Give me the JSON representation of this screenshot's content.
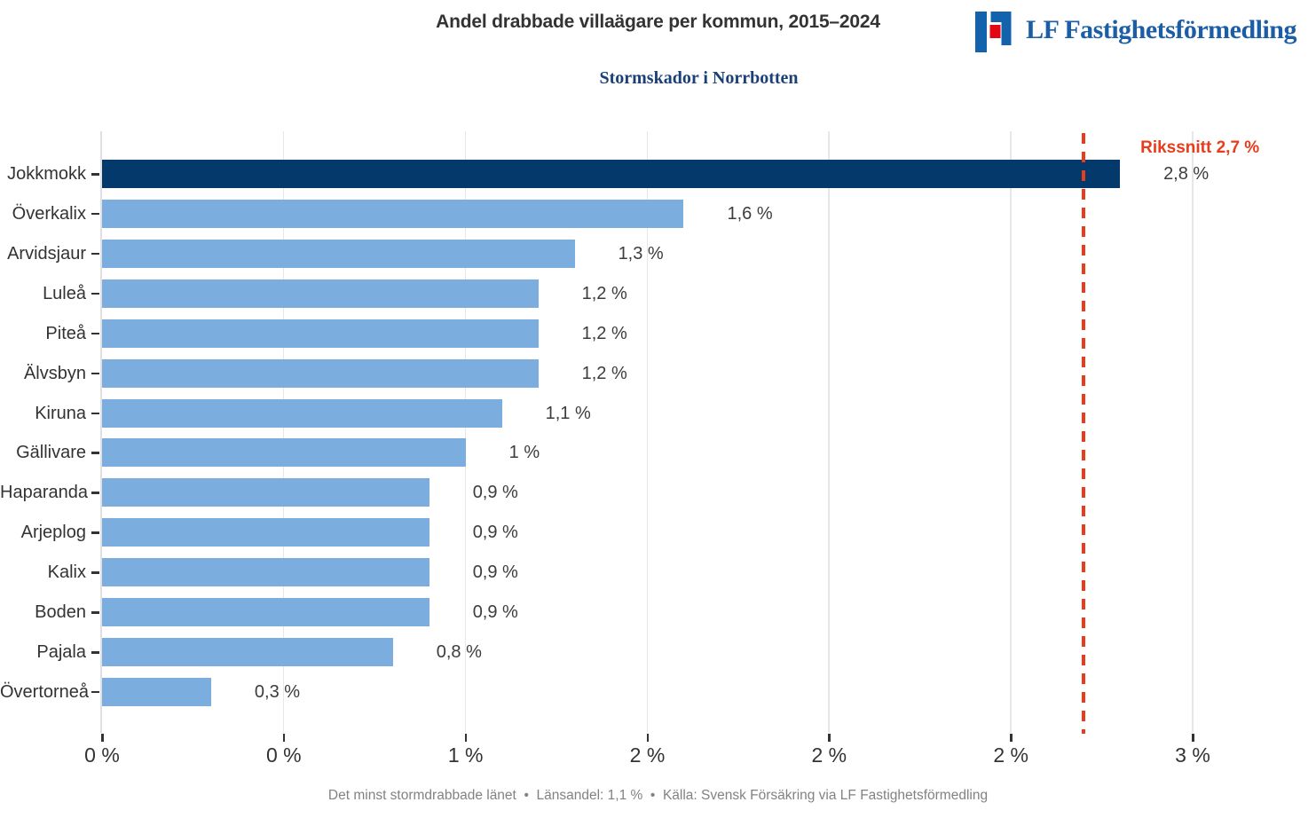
{
  "header": {
    "title": "Andel drabbade villaägare per kommun, 2015–2024",
    "logo": {
      "text": "LF Fastighetsförmedling",
      "brand_blue": "#1362ac",
      "brand_red": "#e30613",
      "text_blue": "#1b5ea6"
    }
  },
  "subtitle": "Stormskador i Norrbotten",
  "chart_data": {
    "type": "bar",
    "orientation": "horizontal",
    "title": "Andel drabbade villaägare per kommun, 2015–2024",
    "subtitle": "Stormskador i Norrbotten",
    "categories": [
      "Jokkmokk",
      "Överkalix",
      "Arvidsjaur",
      "Luleå",
      "Piteå",
      "Älvsbyn",
      "Kiruna",
      "Gällivare",
      "Haparanda",
      "Arjeplog",
      "Kalix",
      "Boden",
      "Pajala",
      "Övertorneå"
    ],
    "values": [
      2.8,
      1.6,
      1.3,
      1.2,
      1.2,
      1.2,
      1.1,
      1.0,
      0.9,
      0.9,
      0.9,
      0.9,
      0.8,
      0.3
    ],
    "value_labels": [
      "2,8 %",
      "1,6 %",
      "1,3 %",
      "1,2 %",
      "1,2 %",
      "1,2 %",
      "1,1 %",
      "1 %",
      "0,9 %",
      "0,9 %",
      "0,9 %",
      "0,9 %",
      "0,8 %",
      "0,3 %"
    ],
    "xlabel": "",
    "ylabel": "",
    "xlim": [
      0,
      3.28
    ],
    "x_ticks": [
      0,
      0.5,
      1,
      1.5,
      2,
      2.5,
      3
    ],
    "x_tick_labels": [
      "0 %",
      "0 %",
      "1 %",
      "2 %",
      "2 %",
      "2 %",
      "3 %"
    ],
    "grid": true,
    "highlight_index": 0,
    "reference_line": {
      "value": 2.7,
      "label": "Rikssnitt 2,7 %"
    },
    "colors": {
      "bar": "#7badde",
      "highlight": "#043a6b",
      "reference": "#e83c1c",
      "gridline": "#e7e7e7",
      "axis": "#e0e0e0"
    }
  },
  "footer": {
    "text": "Det minst stormdrabbade länet  •  Länsandel: 1,1 %  •  Källa: Svensk Försäkring via LF Fastighetsförmedling"
  }
}
